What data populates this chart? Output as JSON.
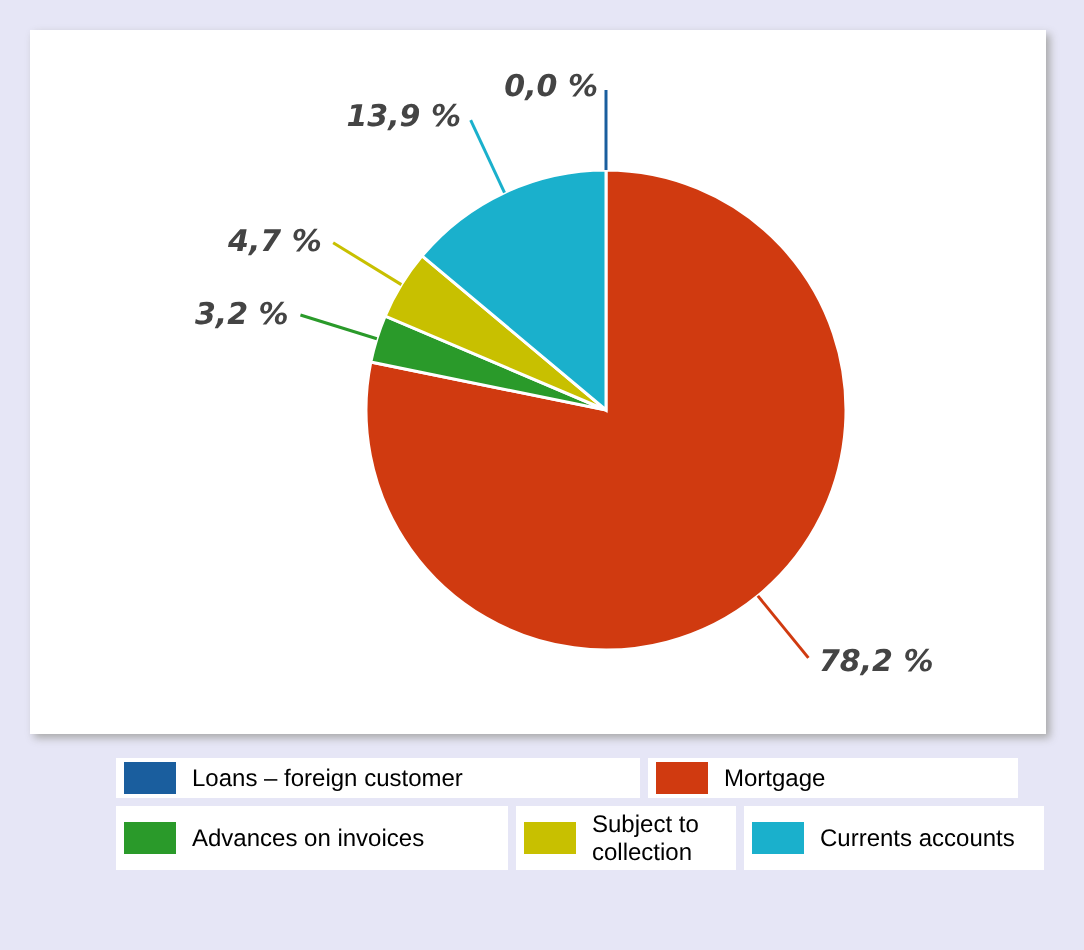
{
  "chart_data": {
    "type": "pie",
    "categories": [
      "Loans – foreign customer",
      "Mortgage",
      "Advances on invoices",
      "Subject to collection",
      "Currents accounts"
    ],
    "values": [
      0.0,
      78.2,
      3.2,
      4.7,
      13.9
    ],
    "colors": [
      "#1a5e9e",
      "#d03a10",
      "#2a9a2a",
      "#c8c000",
      "#1ab0cc"
    ],
    "value_labels": [
      "0,0 %",
      "78,2 %",
      "3,2 %",
      "4,7 %",
      "13,9 %"
    ],
    "legend": "bottom"
  }
}
